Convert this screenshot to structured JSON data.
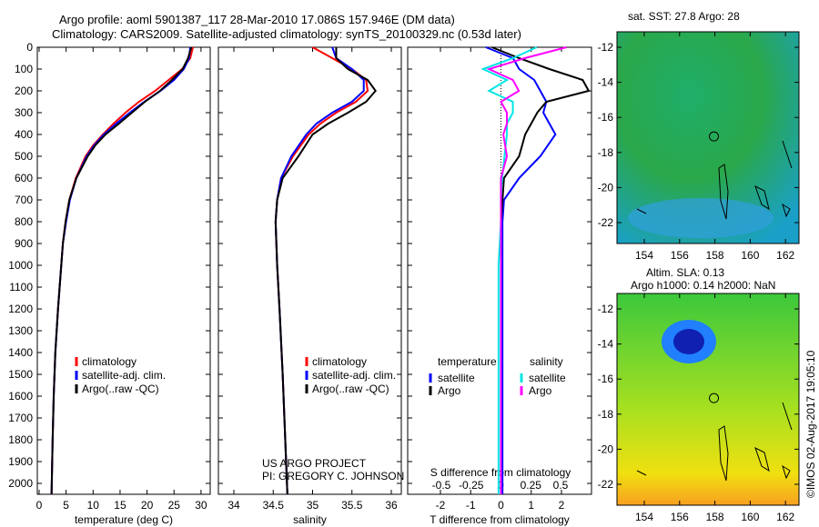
{
  "titles": {
    "line1": "Argo profile: aoml 5901387_117 28-Mar-2010 17.086S 157.946E (DM data)",
    "line2": "Climatology: CARS2009. Satellite-adjusted climatology: synTS_20100329.nc (0.53d later)"
  },
  "project": {
    "line1": "US ARGO PROJECT",
    "line2": "PI: GREGORY C. JOHNSON"
  },
  "timestamp": "©IMOS 02-Aug-2017 19:05:10",
  "colors": {
    "climatology": "#ff0000",
    "satellite": "#0000ff",
    "argo": "#000000",
    "sal_satellite": "#00e5e5",
    "sal_argo": "#ff00ff"
  },
  "chart_data": [
    {
      "type": "line",
      "xlabel": "temperature (deg C)",
      "ylabel": "",
      "xlim": [
        -2,
        31
      ],
      "ylim": [
        2050,
        0
      ],
      "xticks": [
        "0",
        "5",
        "10",
        "15",
        "20",
        "25",
        "30"
      ],
      "yticks": [
        "0",
        "100",
        "200",
        "300",
        "400",
        "500",
        "600",
        "700",
        "800",
        "900",
        "1000",
        "1100",
        "1200",
        "1300",
        "1400",
        "1500",
        "1600",
        "1700",
        "1800",
        "1900",
        "2000"
      ],
      "legend": [
        "climatology",
        "satellite-adj. clim.",
        "Argo(..raw -QC)"
      ],
      "depth": [
        0,
        50,
        100,
        150,
        200,
        250,
        300,
        350,
        400,
        450,
        500,
        600,
        700,
        800,
        900,
        1000,
        1200,
        1400,
        1600,
        1800,
        2050
      ],
      "series": [
        {
          "name": "climatology",
          "values": [
            28.5,
            28,
            26.5,
            24,
            21.5,
            18.5,
            16,
            13.8,
            11.8,
            10,
            8.6,
            6.8,
            5.6,
            4.9,
            4.4,
            4.1,
            3.5,
            3.0,
            2.7,
            2.5,
            2.3
          ]
        },
        {
          "name": "satellite-adj. clim.",
          "values": [
            28,
            27.8,
            26.8,
            25,
            22.5,
            19.5,
            16.8,
            14.3,
            12,
            10.2,
            8.8,
            6.9,
            5.7,
            5.0,
            4.4,
            4.1,
            3.5,
            3.0,
            2.7,
            2.5,
            2.3
          ]
        },
        {
          "name": "Argo(..raw -QC)",
          "values": [
            28.2,
            27.6,
            26.6,
            24.6,
            22.4,
            19.6,
            17.2,
            14.8,
            12.3,
            10.4,
            9.0,
            6.9,
            5.6,
            4.9,
            4.4,
            4.1,
            3.5,
            3.0,
            2.7,
            2.5,
            2.3
          ]
        }
      ]
    },
    {
      "type": "line",
      "xlabel": "salinity",
      "xlim": [
        33.8,
        36.1
      ],
      "ylim": [
        2050,
        0
      ],
      "xticks": [
        "34",
        "34.5",
        "35",
        "35.5",
        "36"
      ],
      "legend": [
        "climatology",
        "satellite-adj. clim.",
        "Argo(..raw -QC)"
      ],
      "depth": [
        0,
        50,
        100,
        150,
        200,
        250,
        300,
        350,
        400,
        500,
        600,
        700,
        800,
        1000,
        1200,
        1500,
        2050
      ],
      "series": [
        {
          "name": "climatology",
          "values": [
            35.0,
            35.25,
            35.5,
            35.68,
            35.7,
            35.55,
            35.3,
            35.1,
            34.95,
            34.75,
            34.6,
            34.55,
            34.53,
            34.55,
            34.58,
            34.62,
            34.68
          ]
        },
        {
          "name": "satellite-adj. clim.",
          "values": [
            35.25,
            35.3,
            35.5,
            35.65,
            35.65,
            35.5,
            35.25,
            35.05,
            34.92,
            34.73,
            34.6,
            34.55,
            34.53,
            34.55,
            34.58,
            34.62,
            34.68
          ]
        },
        {
          "name": "Argo(..raw -QC)",
          "values": [
            35.3,
            35.3,
            35.45,
            35.7,
            35.8,
            35.68,
            35.45,
            35.2,
            35.0,
            34.82,
            34.62,
            34.55,
            34.53,
            34.55,
            34.58,
            34.62,
            34.68
          ]
        }
      ]
    },
    {
      "type": "line",
      "xlabel": "T difference from climatology",
      "x2label": "S difference from climatology",
      "xlim": [
        -2.9,
        3.1
      ],
      "ylim": [
        2050,
        0
      ],
      "xticks": [
        "-2",
        "-1",
        "0",
        "1",
        "2"
      ],
      "x2ticks": [
        "-0.5",
        "-0.25",
        "0",
        "0.25",
        "0.5"
      ],
      "legend_titles": [
        "temperature",
        "salinity"
      ],
      "legend": [
        "satellite",
        "Argo",
        "satellite",
        "Argo"
      ],
      "depth": [
        0,
        50,
        100,
        150,
        200,
        250,
        300,
        350,
        400,
        500,
        600,
        700,
        800,
        1000,
        1500,
        2050
      ],
      "series": [
        {
          "name": "T satellite",
          "values": [
            -0.5,
            0.4,
            0.6,
            1.1,
            1.3,
            1.5,
            1.4,
            1.6,
            1.8,
            1.3,
            0.6,
            0.1,
            0.05,
            0.05,
            0.05,
            0.05
          ]
        },
        {
          "name": "T Argo",
          "values": [
            -0.3,
            0.6,
            1.6,
            2.7,
            2.9,
            1.5,
            1.2,
            1.0,
            0.8,
            0.6,
            0.1,
            0.05,
            0,
            0,
            0,
            0
          ]
        },
        {
          "name": "S satellite",
          "values": [
            0.3,
            0.1,
            -0.15,
            0.05,
            -0.1,
            0.1,
            0.1,
            0.05,
            0.05,
            0.03,
            0.01,
            0,
            0,
            -0.02,
            -0.02,
            -0.02
          ]
        },
        {
          "name": "S Argo",
          "values": [
            0.55,
            0.2,
            -0.1,
            0.1,
            0.15,
            0.0,
            0.05,
            0.05,
            0.02,
            0.05,
            0,
            0,
            0,
            0,
            0,
            0
          ]
        }
      ]
    },
    {
      "type": "heatmap",
      "title": "sat. SST: 27.8 Argo: 28",
      "xticks": [
        "154",
        "156",
        "158",
        "160",
        "162"
      ],
      "yticks": [
        "-12",
        "-14",
        "-16",
        "-18",
        "-20",
        "-22"
      ],
      "argo_position": [
        157.946,
        -17.086
      ]
    },
    {
      "type": "heatmap",
      "title1": "Altim. SLA: 0.13",
      "title2": "Argo h1000: 0.14 h2000: NaN",
      "xticks": [
        "154",
        "156",
        "158",
        "160",
        "162"
      ],
      "yticks": [
        "-12",
        "-14",
        "-16",
        "-18",
        "-20",
        "-22"
      ],
      "argo_position": [
        157.946,
        -17.086
      ]
    }
  ]
}
